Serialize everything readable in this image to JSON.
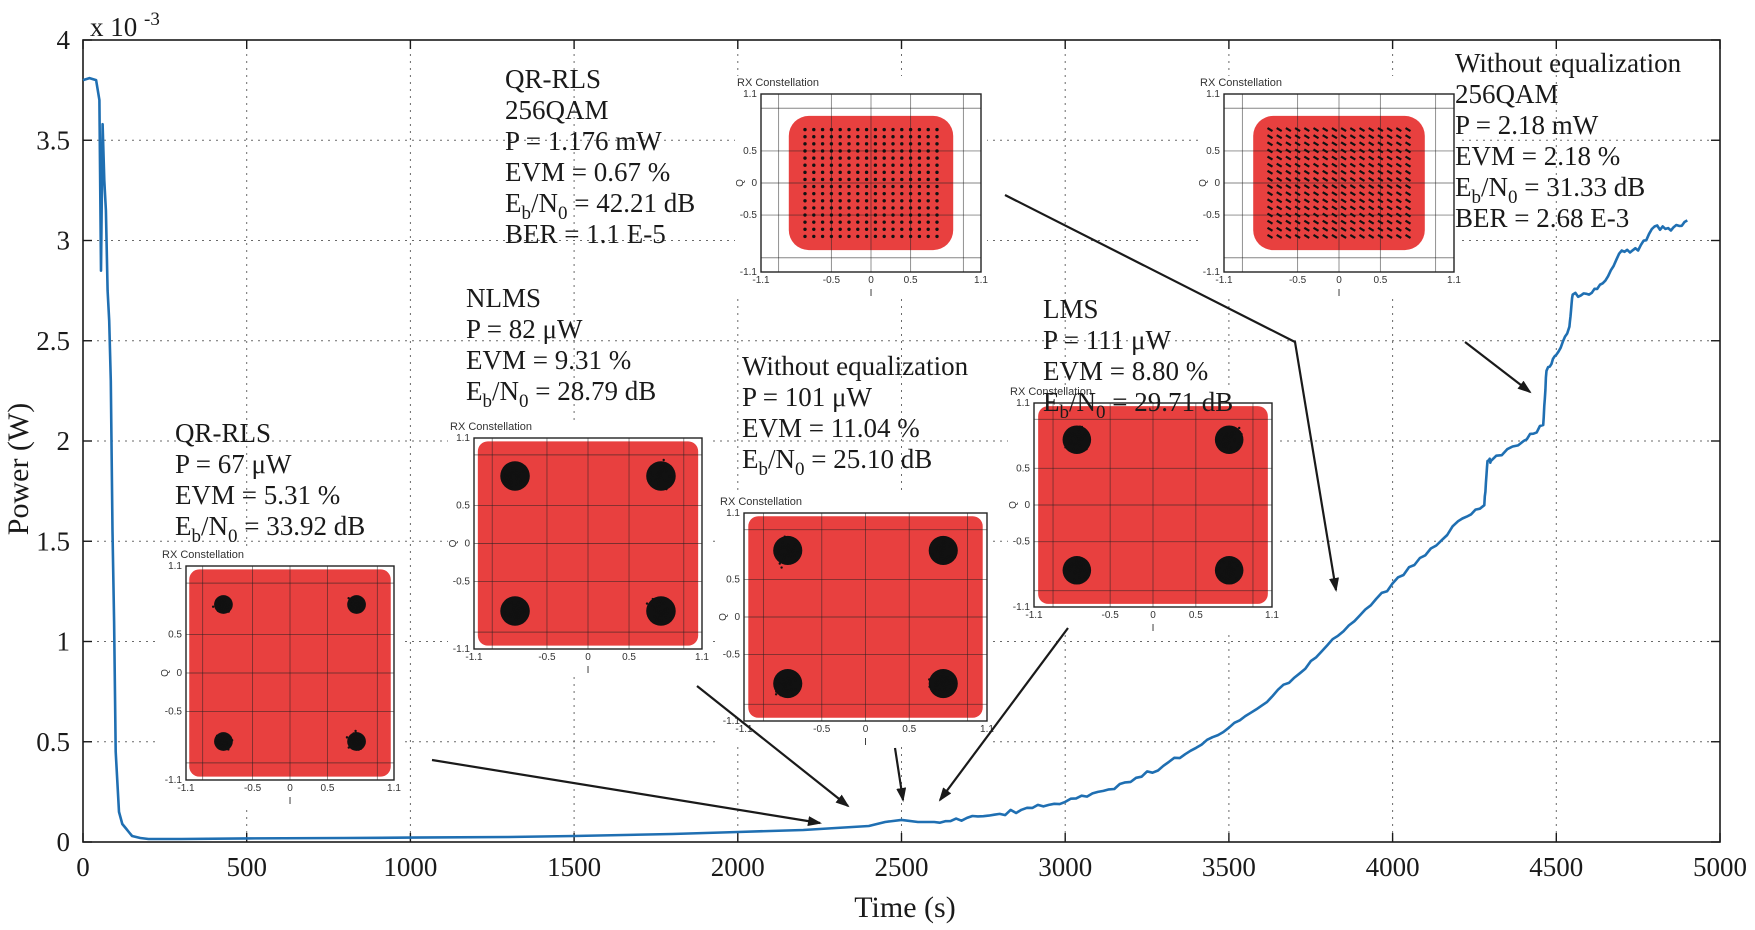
{
  "chart_data": {
    "type": "line",
    "xlabel": "Time (s)",
    "ylabel": "Power (W)",
    "y_multiplier_label": "x 10",
    "y_multiplier_exp": "-3",
    "xlim": [
      0,
      5000
    ],
    "ylim": [
      0,
      4
    ],
    "xticks": [
      0,
      500,
      1000,
      1500,
      2000,
      2500,
      3000,
      3500,
      4000,
      4500,
      5000
    ],
    "yticks": [
      0,
      0.5,
      1,
      1.5,
      2,
      2.5,
      3,
      3.5,
      4
    ],
    "ytick_labels": [
      "0",
      "0.5",
      "1",
      "1.5",
      "2",
      "2.5",
      "3",
      "3.5",
      "4"
    ],
    "grid": true,
    "line_color": "#1f6fb2",
    "series": [
      {
        "x": [
          0,
          20,
          40,
          50,
          55,
          60,
          65,
          70,
          75,
          80,
          85,
          90,
          95,
          100,
          110,
          120,
          130,
          140,
          150,
          175,
          200,
          300,
          500,
          800,
          1000,
          1300,
          1500,
          1800,
          2000,
          2200,
          2300,
          2400,
          2450,
          2500,
          2550,
          2600,
          2700,
          2800,
          2900,
          3000,
          3100,
          3200,
          3300,
          3400,
          3500,
          3600,
          3700,
          3800,
          3900,
          4000,
          4100,
          4200,
          4280,
          4290,
          4300,
          4400,
          4460,
          4470,
          4500,
          4540,
          4550,
          4600,
          4650,
          4700,
          4750,
          4800,
          4850,
          4900
        ],
        "y": [
          3.8,
          3.81,
          3.8,
          3.7,
          2.85,
          3.58,
          3.3,
          3.15,
          2.75,
          2.6,
          2.3,
          1.55,
          1.1,
          0.45,
          0.15,
          0.09,
          0.07,
          0.05,
          0.03,
          0.02,
          0.015,
          0.015,
          0.018,
          0.02,
          0.022,
          0.025,
          0.03,
          0.04,
          0.05,
          0.06,
          0.07,
          0.08,
          0.1,
          0.11,
          0.1,
          0.1,
          0.12,
          0.14,
          0.17,
          0.2,
          0.25,
          0.3,
          0.38,
          0.47,
          0.57,
          0.68,
          0.82,
          0.98,
          1.13,
          1.29,
          1.43,
          1.6,
          1.68,
          1.9,
          1.9,
          2.0,
          2.08,
          2.35,
          2.43,
          2.57,
          2.73,
          2.73,
          2.8,
          2.95,
          2.95,
          3.07,
          3.05,
          3.1
        ]
      }
    ],
    "annotations": [
      {
        "id": "qrrls-256",
        "lines": [
          {
            "pre": "QR-RLS",
            "sub": "",
            "post": ""
          },
          {
            "pre": "256QAM",
            "sub": "",
            "post": ""
          },
          {
            "pre": "P = 1.176 mW",
            "sub": "",
            "post": ""
          },
          {
            "pre": "EVM = 0.67 %",
            "sub": "",
            "post": ""
          },
          {
            "pre": "E",
            "sub": "b",
            "post": "/N",
            "sub2": "0",
            "post2": " = 42.21 dB"
          },
          {
            "pre": "BER = 1.1 E-5",
            "sub": "",
            "post": ""
          }
        ]
      },
      {
        "id": "nlms",
        "lines": [
          {
            "pre": "NLMS",
            "sub": "",
            "post": ""
          },
          {
            "pre": "P = 82 μW",
            "sub": "",
            "post": ""
          },
          {
            "pre": "EVM = 9.31 %",
            "sub": "",
            "post": ""
          },
          {
            "pre": "E",
            "sub": "b",
            "post": "/N",
            "sub2": "0",
            "post2": " = 28.79 dB"
          }
        ]
      },
      {
        "id": "qrrls-4",
        "lines": [
          {
            "pre": "QR-RLS",
            "sub": "",
            "post": ""
          },
          {
            "pre": "P = 67 μW",
            "sub": "",
            "post": ""
          },
          {
            "pre": "EVM = 5.31 %",
            "sub": "",
            "post": ""
          },
          {
            "pre": "E",
            "sub": "b",
            "post": "/N",
            "sub2": "0",
            "post2": " = 33.92 dB"
          }
        ]
      },
      {
        "id": "noeq-4",
        "lines": [
          {
            "pre": "Without equalization",
            "sub": "",
            "post": ""
          },
          {
            "pre": "P = 101 μW",
            "sub": "",
            "post": ""
          },
          {
            "pre": "EVM = 11.04 %",
            "sub": "",
            "post": ""
          },
          {
            "pre": "E",
            "sub": "b",
            "post": "/N",
            "sub2": "0",
            "post2": " = 25.10 dB"
          }
        ]
      },
      {
        "id": "lms",
        "lines": [
          {
            "pre": "LMS",
            "sub": "",
            "post": ""
          },
          {
            "pre": "P = 111 μW",
            "sub": "",
            "post": ""
          },
          {
            "pre": "EVM = 8.80 %",
            "sub": "",
            "post": ""
          },
          {
            "pre": "E",
            "sub": "b",
            "post": "/N",
            "sub2": "0",
            "post2": " = 29.71 dB"
          }
        ]
      },
      {
        "id": "noeq-256",
        "lines": [
          {
            "pre": "Without equalization",
            "sub": "",
            "post": ""
          },
          {
            "pre": "256QAM",
            "sub": "",
            "post": ""
          },
          {
            "pre": "P = 2.18 mW",
            "sub": "",
            "post": ""
          },
          {
            "pre": "EVM = 2.18 %",
            "sub": "",
            "post": ""
          },
          {
            "pre": "E",
            "sub": "b",
            "post": "/N",
            "sub2": "0",
            "post2": " = 31.33 dB"
          },
          {
            "pre": "BER = 2.68 E-3",
            "sub": "",
            "post": ""
          }
        ]
      }
    ],
    "insets": [
      {
        "id": "qrrls-4",
        "title": "RX Constellation",
        "order": 4,
        "xlabel": "I",
        "ylabel": "Q",
        "ticks": [
          "-1.1",
          "-1",
          "-0.5",
          "0",
          "0.5",
          "1",
          "1.1"
        ]
      },
      {
        "id": "nlms",
        "title": "RX Constellation",
        "order": 4,
        "xlabel": "I",
        "ylabel": "Q",
        "ticks": [
          "-1.1",
          "-1",
          "-0.5",
          "0",
          "0.5",
          "1",
          "1.1"
        ]
      },
      {
        "id": "noeq-4",
        "title": "RX Constellation",
        "order": 4,
        "xlabel": "I",
        "ylabel": "Q",
        "ticks": [
          "-1.1",
          "-1",
          "-0.5",
          "0",
          "0.5",
          "1",
          "1.1"
        ]
      },
      {
        "id": "lms",
        "title": "RX Constellation",
        "order": 4,
        "xlabel": "I",
        "ylabel": "Q",
        "ticks": [
          "-1.1",
          "-1",
          "-0.5",
          "0",
          "0.5",
          "1",
          "1.1"
        ]
      },
      {
        "id": "qrrls-256",
        "title": "RX Constellation",
        "order": 256,
        "xlabel": "I",
        "ylabel": "Q",
        "ticks": [
          "-1.1",
          "-1",
          "-0.5",
          "0",
          "0.5",
          "1",
          "1.1"
        ]
      },
      {
        "id": "noeq-256",
        "title": "RX Constellation",
        "order": 256,
        "xlabel": "I",
        "ylabel": "Q",
        "ticks": [
          "-1.1",
          "-1",
          "-0.5",
          "0",
          "0.5",
          "1",
          "1.1"
        ]
      }
    ],
    "colors": {
      "inset_cloud": "#e8403f",
      "inset_points": "#111111"
    }
  }
}
